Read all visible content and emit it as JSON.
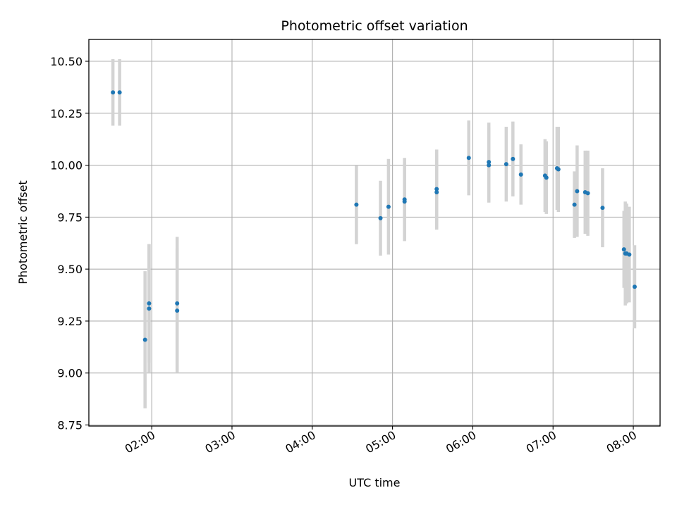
{
  "chart_data": {
    "type": "scatter",
    "title": "Photometric offset variation",
    "xlabel": "UTC time",
    "ylabel": "Photometric offset",
    "x_unit": "UTC time (HH:MM)",
    "xlim": [
      "01:13",
      "08:20"
    ],
    "ylim": [
      8.745,
      10.605
    ],
    "x_ticks": [
      "02:00",
      "03:00",
      "04:00",
      "05:00",
      "06:00",
      "07:00",
      "08:00"
    ],
    "y_ticks": [
      "8.75",
      "9.00",
      "9.25",
      "9.50",
      "9.75",
      "10.00",
      "10.25",
      "10.50"
    ],
    "grid": true,
    "colors": {
      "points": "#1f77b4",
      "error_bars": "#d3d3d3",
      "grid": "#b0b0b0"
    },
    "series": [
      {
        "points": [
          {
            "t": "01:31",
            "y": 10.35,
            "err": 0.16
          },
          {
            "t": "01:36",
            "y": 10.35,
            "err": 0.16
          },
          {
            "t": "01:55",
            "y": 9.16,
            "err": 0.33
          },
          {
            "t": "01:58",
            "y": 9.31,
            "err": 0.31
          },
          {
            "t": "01:58",
            "y": 9.335,
            "err": 0.285
          },
          {
            "t": "02:19",
            "y": 9.3,
            "err": 0.3
          },
          {
            "t": "02:19",
            "y": 9.335,
            "err": 0.32
          },
          {
            "t": "04:33",
            "y": 9.81,
            "err": 0.19
          },
          {
            "t": "04:51",
            "y": 9.745,
            "err": 0.18
          },
          {
            "t": "04:57",
            "y": 9.8,
            "err": 0.23
          },
          {
            "t": "05:09",
            "y": 9.835,
            "err": 0.2
          },
          {
            "t": "05:09",
            "y": 9.825,
            "err": 0.19
          },
          {
            "t": "05:33",
            "y": 9.885,
            "err": 0.19
          },
          {
            "t": "05:33",
            "y": 9.87,
            "err": 0.18
          },
          {
            "t": "05:57",
            "y": 10.035,
            "err": 0.18
          },
          {
            "t": "06:12",
            "y": 10.015,
            "err": 0.19
          },
          {
            "t": "06:12",
            "y": 10.0,
            "err": 0.18
          },
          {
            "t": "06:25",
            "y": 10.005,
            "err": 0.18
          },
          {
            "t": "06:30",
            "y": 10.03,
            "err": 0.18
          },
          {
            "t": "06:36",
            "y": 9.955,
            "err": 0.145
          },
          {
            "t": "06:54",
            "y": 9.95,
            "err": 0.175
          },
          {
            "t": "06:55",
            "y": 9.94,
            "err": 0.175
          },
          {
            "t": "07:03",
            "y": 9.985,
            "err": 0.2
          },
          {
            "t": "07:04",
            "y": 9.98,
            "err": 0.205
          },
          {
            "t": "07:16",
            "y": 9.81,
            "err": 0.16
          },
          {
            "t": "07:18",
            "y": 9.875,
            "err": 0.22
          },
          {
            "t": "07:24",
            "y": 9.87,
            "err": 0.2
          },
          {
            "t": "07:26",
            "y": 9.865,
            "err": 0.205
          },
          {
            "t": "07:37",
            "y": 9.795,
            "err": 0.19
          },
          {
            "t": "07:53",
            "y": 9.595,
            "err": 0.185
          },
          {
            "t": "07:54",
            "y": 9.575,
            "err": 0.25
          },
          {
            "t": "07:55",
            "y": 9.575,
            "err": 0.24
          },
          {
            "t": "07:57",
            "y": 9.57,
            "err": 0.23
          },
          {
            "t": "08:01",
            "y": 9.415,
            "err": 0.2
          }
        ]
      }
    ]
  }
}
